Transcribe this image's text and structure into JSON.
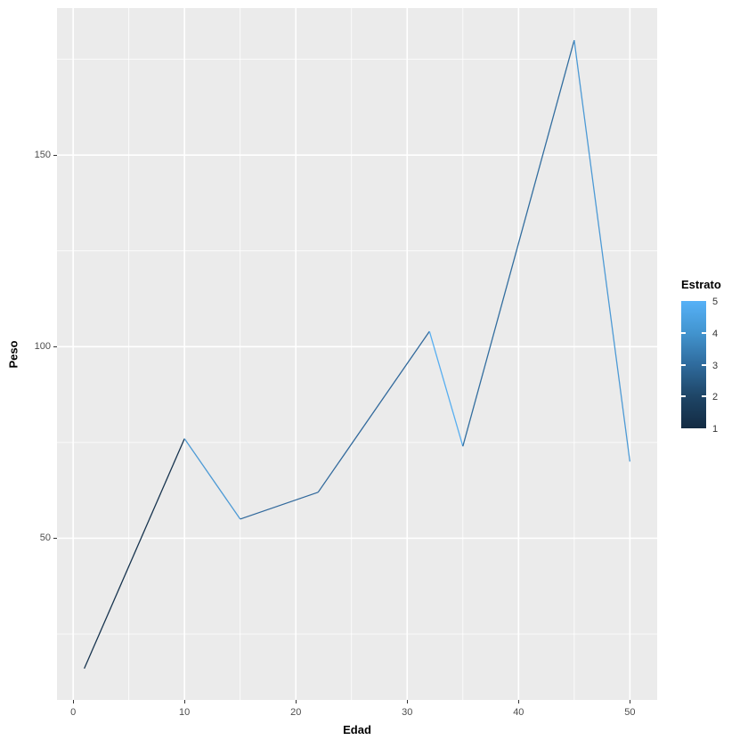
{
  "axes": {
    "x": {
      "title": "Edad",
      "ticks": [
        0,
        10,
        20,
        30,
        40,
        50
      ],
      "minor_ticks": [
        5,
        15,
        25,
        35,
        45
      ]
    },
    "y": {
      "title": "Peso",
      "ticks": [
        50,
        100,
        150
      ],
      "minor_ticks": [
        25,
        75,
        125,
        175
      ]
    }
  },
  "legend": {
    "title": "Estrato",
    "labels": [
      "5",
      "4",
      "3",
      "2",
      "1"
    ],
    "tick_values": [
      2,
      3,
      4
    ],
    "gradient_high": "#56B1F7",
    "gradient_low": "#132B43",
    "gradient_stops": [
      "#56B1F7",
      "#4294CF",
      "#2F6B9D",
      "#1E4566",
      "#132B43"
    ]
  },
  "colors": {
    "panel_background": "#EBEBEB",
    "grid_major": "#FFFFFF",
    "grid_minor": "#FFFFFF",
    "tick_text": "#4D4D4D",
    "tick_mark": "#333333"
  },
  "chart_data": {
    "type": "line",
    "x": [
      1,
      10,
      15,
      22,
      32,
      35,
      45,
      50
    ],
    "series": [
      {
        "name": "Peso",
        "values": [
          16,
          76,
          55,
          62,
          104,
          74,
          180,
          70
        ]
      }
    ],
    "color_by": {
      "name": "Estrato",
      "estimated_values": [
        1,
        4,
        3,
        3,
        5,
        3,
        4,
        4
      ],
      "scale": {
        "low_value": 1,
        "low_color": "#132B43",
        "high_value": 5,
        "high_color": "#56B1F7"
      }
    },
    "segment_colors": [
      "#17344F",
      "#4D9AD5",
      "#31699C",
      "#31699C",
      "#57AEF0",
      "#336E9F",
      "#4D9AD5"
    ],
    "title": "",
    "xlabel": "Edad",
    "ylabel": "Peso",
    "xlim": [
      -1.45,
      52.45
    ],
    "ylim": [
      7.8,
      188.4
    ],
    "grid": "on",
    "legend_position": "right"
  }
}
